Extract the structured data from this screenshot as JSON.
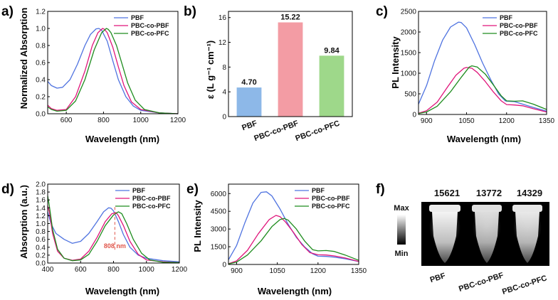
{
  "colors": {
    "PBF": "#4f73e0",
    "PBC-co-PBF": "#e0157a",
    "PBC-co-PFC": "#1e8c1e"
  },
  "chart_data": [
    {
      "id": "a",
      "panel": "a)",
      "type": "line",
      "xlabel": "Wavelength (nm)",
      "ylabel": "Normalized Absorption",
      "xlim": [
        500,
        1200
      ],
      "ylim": [
        0,
        1.2
      ],
      "xticks": [
        600,
        800,
        1000,
        1200
      ],
      "yticks": [
        0.0,
        0.2,
        0.4,
        0.6,
        0.8,
        1.0,
        1.2
      ],
      "legend_position": "top-right",
      "series": [
        {
          "name": "PBF",
          "color": "#4f73e0",
          "x": [
            500,
            520,
            550,
            580,
            620,
            660,
            700,
            730,
            760,
            775,
            790,
            820,
            850,
            880,
            920,
            960,
            1000,
            1100,
            1200
          ],
          "y": [
            0.38,
            0.33,
            0.3,
            0.31,
            0.4,
            0.58,
            0.8,
            0.93,
            0.995,
            1.0,
            0.98,
            0.85,
            0.62,
            0.4,
            0.2,
            0.09,
            0.04,
            0.01,
            0.0
          ]
        },
        {
          "name": "PBC-co-PBF",
          "color": "#e0157a",
          "x": [
            500,
            520,
            550,
            600,
            650,
            700,
            740,
            770,
            795,
            805,
            820,
            850,
            880,
            910,
            950,
            1000,
            1100,
            1200
          ],
          "y": [
            0.1,
            0.06,
            0.04,
            0.05,
            0.2,
            0.5,
            0.8,
            0.95,
            1.0,
            0.99,
            0.95,
            0.78,
            0.55,
            0.33,
            0.14,
            0.05,
            0.01,
            0.0
          ]
        },
        {
          "name": "PBC-co-PFC",
          "color": "#1e8c1e",
          "x": [
            500,
            520,
            550,
            600,
            650,
            700,
            750,
            790,
            815,
            825,
            840,
            870,
            900,
            930,
            970,
            1020,
            1100,
            1200
          ],
          "y": [
            0.08,
            0.05,
            0.03,
            0.04,
            0.15,
            0.4,
            0.75,
            0.95,
            1.0,
            0.99,
            0.95,
            0.8,
            0.58,
            0.36,
            0.16,
            0.05,
            0.01,
            0.0
          ]
        }
      ]
    },
    {
      "id": "b",
      "panel": "b)",
      "type": "bar",
      "ylabel": "ε (L g⁻¹ cm⁻¹)",
      "ylim": [
        0,
        17
      ],
      "yticks": [
        0,
        4,
        8,
        12,
        16
      ],
      "categories": [
        "PBF",
        "PBC-co-PBF",
        "PBC-co-PFC"
      ],
      "values": [
        4.7,
        15.22,
        9.84
      ],
      "value_labels": [
        "4.70",
        "15.22",
        "9.84"
      ],
      "bar_colors": [
        "#8db8e8",
        "#f39ca4",
        "#9ed88a"
      ]
    },
    {
      "id": "c",
      "panel": "c)",
      "type": "line",
      "xlabel": "Wavelength (nm)",
      "ylabel": "PL Intensity",
      "xlim": [
        870,
        1350
      ],
      "ylim": [
        0,
        2500
      ],
      "xticks": [
        900,
        1050,
        1200,
        1350
      ],
      "yticks": [
        0,
        500,
        1000,
        1500,
        2000,
        2500
      ],
      "legend_position": "top-right",
      "series": [
        {
          "name": "PBF",
          "color": "#4f73e0",
          "x": [
            870,
            900,
            930,
            960,
            990,
            1020,
            1030,
            1050,
            1080,
            1110,
            1140,
            1170,
            1195,
            1200,
            1230,
            1260,
            1300,
            1350
          ],
          "y": [
            250,
            700,
            1300,
            1800,
            2120,
            2240,
            2230,
            2100,
            1700,
            1250,
            850,
            500,
            330,
            320,
            310,
            250,
            170,
            80
          ]
        },
        {
          "name": "PBC-co-PBF",
          "color": "#e0157a",
          "x": [
            870,
            900,
            940,
            980,
            1010,
            1040,
            1050,
            1070,
            1090,
            1120,
            1150,
            1180,
            1200,
            1230,
            1260,
            1300,
            1350
          ],
          "y": [
            30,
            90,
            300,
            680,
            950,
            1120,
            1140,
            1120,
            1020,
            800,
            550,
            330,
            240,
            230,
            210,
            140,
            60
          ]
        },
        {
          "name": "PBC-co-PFC",
          "color": "#1e8c1e",
          "x": [
            870,
            900,
            940,
            990,
            1030,
            1060,
            1070,
            1090,
            1120,
            1150,
            1180,
            1200,
            1230,
            1260,
            1300,
            1350
          ],
          "y": [
            20,
            60,
            200,
            550,
            900,
            1150,
            1180,
            1150,
            980,
            720,
            450,
            330,
            320,
            330,
            250,
            120
          ]
        }
      ]
    },
    {
      "id": "d",
      "panel": "d)",
      "type": "line",
      "xlabel": "Wavelength (nm)",
      "ylabel": "Absorption (a.u.)",
      "xlim": [
        400,
        1200
      ],
      "ylim": [
        0,
        2.0
      ],
      "xticks": [
        400,
        600,
        800,
        1000,
        1200
      ],
      "yticks": [
        0.0,
        0.2,
        0.4,
        0.6,
        0.8,
        1.0,
        1.2,
        1.4,
        1.6,
        1.8,
        2.0
      ],
      "legend_position": "top-right",
      "annotation": {
        "text": "808 nm",
        "x": 808
      },
      "series": [
        {
          "name": "PBF",
          "color": "#4f73e0",
          "x": [
            400,
            420,
            450,
            500,
            550,
            600,
            650,
            700,
            740,
            770,
            785,
            800,
            830,
            860,
            900,
            950,
            1000,
            1100,
            1200
          ],
          "y": [
            1.3,
            1.0,
            0.75,
            0.6,
            0.5,
            0.55,
            0.75,
            1.05,
            1.3,
            1.4,
            1.39,
            1.32,
            1.05,
            0.72,
            0.4,
            0.2,
            0.12,
            0.06,
            0.03
          ]
        },
        {
          "name": "PBC-co-PBF",
          "color": "#e0157a",
          "x": [
            400,
            410,
            430,
            460,
            500,
            550,
            600,
            650,
            700,
            750,
            790,
            815,
            830,
            860,
            900,
            950,
            1000,
            1100,
            1200
          ],
          "y": [
            1.45,
            1.3,
            0.75,
            0.3,
            0.12,
            0.07,
            0.1,
            0.3,
            0.65,
            1.05,
            1.25,
            1.28,
            1.2,
            0.95,
            0.55,
            0.22,
            0.08,
            0.03,
            0.01
          ]
        },
        {
          "name": "PBC-co-PFC",
          "color": "#1e8c1e",
          "x": [
            400,
            410,
            430,
            460,
            500,
            550,
            600,
            650,
            700,
            750,
            800,
            830,
            850,
            880,
            920,
            970,
            1020,
            1100,
            1200
          ],
          "y": [
            1.7,
            1.45,
            0.85,
            0.35,
            0.12,
            0.06,
            0.08,
            0.22,
            0.55,
            0.95,
            1.22,
            1.3,
            1.25,
            1.0,
            0.6,
            0.25,
            0.08,
            0.02,
            0.01
          ]
        }
      ]
    },
    {
      "id": "e",
      "panel": "e)",
      "type": "line",
      "xlabel": "Wavelength (nm)",
      "ylabel": "PL Intensity",
      "xlim": [
        870,
        1350
      ],
      "ylim": [
        0,
        6800
      ],
      "xticks": [
        900,
        1050,
        1200,
        1350
      ],
      "yticks": [
        0,
        1500,
        3000,
        4500,
        6000
      ],
      "legend_position": "top-right",
      "series": [
        {
          "name": "PBF",
          "color": "#4f73e0",
          "x": [
            870,
            900,
            930,
            960,
            990,
            1010,
            1030,
            1060,
            1090,
            1120,
            1150,
            1180,
            1200,
            1230,
            1260,
            1300,
            1350
          ],
          "y": [
            400,
            1600,
            3500,
            5200,
            6100,
            6150,
            5800,
            4700,
            3400,
            2300,
            1500,
            900,
            700,
            680,
            620,
            480,
            250
          ]
        },
        {
          "name": "PBC-co-PBF",
          "color": "#e0157a",
          "x": [
            870,
            900,
            940,
            980,
            1020,
            1045,
            1060,
            1080,
            1110,
            1140,
            1170,
            1200,
            1230,
            1260,
            1300,
            1350
          ],
          "y": [
            60,
            300,
            1200,
            2600,
            3800,
            4150,
            4050,
            3600,
            2700,
            1700,
            1000,
            820,
            800,
            720,
            550,
            250
          ]
        },
        {
          "name": "PBC-co-PFC",
          "color": "#1e8c1e",
          "x": [
            870,
            900,
            940,
            990,
            1030,
            1060,
            1075,
            1090,
            1120,
            1150,
            1180,
            1200,
            1230,
            1260,
            1300,
            1350
          ],
          "y": [
            40,
            200,
            800,
            2000,
            3200,
            3800,
            3900,
            3750,
            3000,
            2000,
            1250,
            1150,
            1180,
            1100,
            800,
            350
          ]
        }
      ]
    }
  ],
  "panel_f": {
    "panel": "f)",
    "counts": [
      "15621",
      "13772",
      "14329"
    ],
    "labels": [
      "PBF",
      "PBC-co-PBF",
      "PBC-co-PFC"
    ],
    "scale_max": "Max",
    "scale_min": "Min"
  }
}
